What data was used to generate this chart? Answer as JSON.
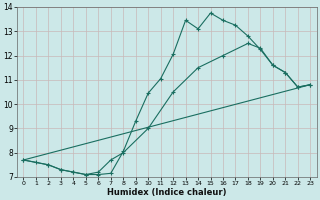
{
  "xlabel": "Humidex (Indice chaleur)",
  "bg_color": "#cce8e8",
  "plot_bg_color": "#cce8e8",
  "grid_color": "#c8b8b8",
  "line_color": "#1a6e60",
  "xlim": [
    -0.5,
    23.5
  ],
  "ylim": [
    7,
    14
  ],
  "xticks": [
    0,
    1,
    2,
    3,
    4,
    5,
    6,
    7,
    8,
    9,
    10,
    11,
    12,
    13,
    14,
    15,
    16,
    17,
    18,
    19,
    20,
    21,
    22,
    23
  ],
  "yticks": [
    7,
    8,
    9,
    10,
    11,
    12,
    13,
    14
  ],
  "line1_x": [
    0,
    1,
    2,
    3,
    4,
    5,
    6,
    7,
    8,
    9,
    10,
    11,
    12,
    13,
    14,
    15,
    16,
    17,
    18,
    19,
    20,
    21,
    22,
    23
  ],
  "line1_y": [
    7.7,
    7.6,
    7.5,
    7.3,
    7.2,
    7.1,
    7.1,
    7.15,
    8.05,
    9.3,
    10.45,
    11.05,
    12.05,
    13.45,
    13.1,
    13.75,
    13.45,
    13.25,
    12.8,
    12.25,
    11.6,
    11.3,
    10.7,
    10.8
  ],
  "line2_x": [
    0,
    2,
    3,
    4,
    5,
    6,
    7,
    8,
    10,
    12,
    14,
    16,
    18,
    19,
    20,
    21,
    22,
    23
  ],
  "line2_y": [
    7.7,
    7.5,
    7.3,
    7.2,
    7.1,
    7.2,
    7.7,
    8.0,
    9.0,
    10.5,
    11.5,
    12.0,
    12.5,
    12.3,
    11.6,
    11.3,
    10.7,
    10.8
  ],
  "line3_x": [
    0,
    23
  ],
  "line3_y": [
    7.7,
    10.8
  ]
}
